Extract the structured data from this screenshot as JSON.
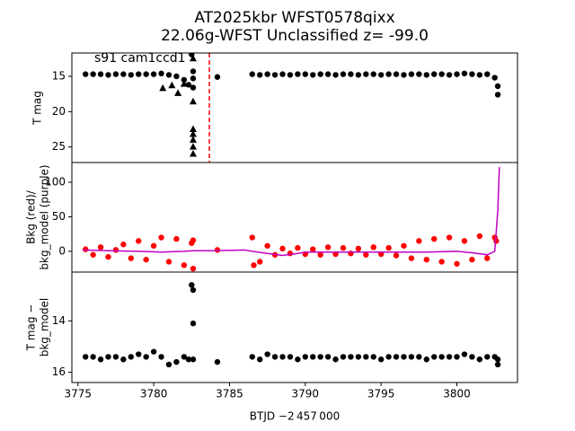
{
  "chart_data": [
    {
      "type": "scatter",
      "title": [
        "AT2025kbr  WFST0578qixx",
        "22.06g-WFST Unclassified z= -99.0"
      ],
      "annotation": "s91 cam1ccd1",
      "ylabel": [
        "T mag"
      ],
      "xlim": [
        3774.6,
        3804.0
      ],
      "ylim": [
        11.7,
        27.2
      ],
      "y_inverted": true,
      "yticks": [
        15,
        20,
        25
      ],
      "vline": {
        "x": 3783.67,
        "color": "red",
        "style": "dashed"
      },
      "series": [
        {
          "marker": "circle",
          "color": "black",
          "x": [
            3775.5,
            3776,
            3776.5,
            3777,
            3777.5,
            3778,
            3778.5,
            3779,
            3779.5,
            3780,
            3780.5,
            3781,
            3781.5,
            3782,
            3782.3,
            3782.5,
            3782.6,
            3782.6,
            3782.6,
            3784.2,
            3786.5,
            3787,
            3787.5,
            3788,
            3788.5,
            3789,
            3789.5,
            3790,
            3790.5,
            3791,
            3791.5,
            3792,
            3792.5,
            3793,
            3793.5,
            3794,
            3794.5,
            3795,
            3795.5,
            3796,
            3796.5,
            3797,
            3797.5,
            3798,
            3798.5,
            3799,
            3799.5,
            3800,
            3800.5,
            3801,
            3801.5,
            3802,
            3802.5,
            3802.7,
            3802.7
          ],
          "values": [
            14.7,
            14.7,
            14.7,
            14.8,
            14.7,
            14.7,
            14.8,
            14.7,
            14.7,
            14.7,
            14.6,
            14.8,
            15.0,
            15.5,
            16.2,
            11.9,
            14.3,
            15.3,
            16.6,
            15.1,
            14.7,
            14.8,
            14.7,
            14.8,
            14.7,
            14.8,
            14.7,
            14.7,
            14.8,
            14.7,
            14.7,
            14.8,
            14.7,
            14.7,
            14.8,
            14.7,
            14.7,
            14.8,
            14.7,
            14.7,
            14.8,
            14.7,
            14.7,
            14.8,
            14.7,
            14.7,
            14.8,
            14.7,
            14.6,
            14.7,
            14.8,
            14.7,
            15.2,
            16.4,
            17.6
          ]
        },
        {
          "marker": "triangle",
          "color": "black",
          "x": [
            3780.6,
            3781.2,
            3781.6,
            3782.0,
            3782.6,
            3782.6,
            3782.6,
            3782.6,
            3782.6,
            3782.6,
            3782.6
          ],
          "values": [
            16.7,
            16.3,
            17.4,
            16.1,
            12.5,
            18.6,
            22.5,
            23.2,
            24.0,
            25.0,
            26.0
          ]
        }
      ]
    },
    {
      "type": "scatter",
      "ylabel": [
        "Bkg (red)/",
        "bkg_model (purple)"
      ],
      "xlim": [
        3774.6,
        3804.0
      ],
      "ylim": [
        -30,
        128.6
      ],
      "y_inverted": false,
      "yticks": [
        0,
        50,
        100
      ],
      "series": [
        {
          "marker": "circle",
          "color": "red",
          "x": [
            3775.5,
            3776,
            3776.5,
            3777,
            3777.5,
            3778,
            3778.5,
            3779,
            3779.5,
            3780,
            3780.5,
            3781,
            3781.5,
            3782,
            3782.5,
            3784.2,
            3786.5,
            3787,
            3787.5,
            3788,
            3788.5,
            3789,
            3789.5,
            3790,
            3790.5,
            3791,
            3791.5,
            3792,
            3792.5,
            3793,
            3793.5,
            3794,
            3794.5,
            3795,
            3795.5,
            3796,
            3796.5,
            3797,
            3797.5,
            3798,
            3798.5,
            3799,
            3799.5,
            3800,
            3800.5,
            3801,
            3801.5,
            3802,
            3802.5,
            3782.6,
            3782.6,
            3786.6,
            3802.6
          ],
          "values": [
            3,
            -5,
            6,
            -8,
            2,
            10,
            -10,
            15,
            -12,
            8,
            20,
            -15,
            18,
            -20,
            12,
            2,
            20,
            -15,
            8,
            -5,
            4,
            -3,
            5,
            -4,
            3,
            -5,
            6,
            -4,
            5,
            -3,
            4,
            -5,
            6,
            -4,
            5,
            -6,
            8,
            -10,
            15,
            -12,
            18,
            -15,
            20,
            -18,
            15,
            -12,
            22,
            -10,
            20,
            -25,
            16,
            -20,
            15
          ]
        },
        {
          "marker": "line",
          "color": "#bf00bf",
          "x": [
            3775.3,
            3777,
            3779,
            3780.5,
            3782,
            3782.6,
            3784,
            3786,
            3786.5,
            3787.5,
            3788.5,
            3789.5,
            3790,
            3792,
            3795,
            3798,
            3800,
            3801,
            3802,
            3802.5,
            3802.7,
            3802.8
          ],
          "values": [
            2,
            1,
            0,
            -1,
            0,
            1,
            1,
            2,
            0,
            -3,
            -6,
            -3,
            -1,
            -1,
            -1,
            -1,
            0,
            -2,
            -5,
            0,
            60,
            122
          ]
        }
      ]
    },
    {
      "type": "scatter",
      "ylabel": [
        "T mag −",
        "bkg_model"
      ],
      "xlabel": "BTJD −2 457 000",
      "xlim": [
        3774.6,
        3804.0
      ],
      "ylim": [
        12.1,
        16.4
      ],
      "y_inverted": true,
      "yticks": [
        14,
        16
      ],
      "xticks": [
        3775,
        3780,
        3785,
        3790,
        3795,
        3800
      ],
      "series": [
        {
          "marker": "circle",
          "color": "black",
          "x": [
            3775.5,
            3776,
            3776.5,
            3777,
            3777.5,
            3778,
            3778.5,
            3779,
            3779.5,
            3780,
            3780.5,
            3781,
            3781.5,
            3782,
            3782.3,
            3782.5,
            3782.6,
            3782.6,
            3782.6,
            3784.2,
            3786.5,
            3787,
            3787.5,
            3788,
            3788.5,
            3789,
            3789.5,
            3790,
            3790.5,
            3791,
            3791.5,
            3792,
            3792.5,
            3793,
            3793.5,
            3794,
            3794.5,
            3795,
            3795.5,
            3796,
            3796.5,
            3797,
            3797.5,
            3798,
            3798.5,
            3799,
            3799.5,
            3800,
            3800.5,
            3801,
            3801.5,
            3802,
            3802.5,
            3802.7,
            3802.7
          ],
          "values": [
            15.4,
            15.4,
            15.5,
            15.4,
            15.4,
            15.5,
            15.4,
            15.3,
            15.4,
            15.2,
            15.4,
            15.7,
            15.6,
            15.4,
            15.5,
            12.6,
            12.8,
            14.1,
            15.5,
            15.6,
            15.4,
            15.5,
            15.3,
            15.4,
            15.4,
            15.4,
            15.5,
            15.4,
            15.4,
            15.4,
            15.4,
            15.5,
            15.4,
            15.4,
            15.4,
            15.4,
            15.4,
            15.5,
            15.4,
            15.4,
            15.4,
            15.4,
            15.4,
            15.5,
            15.4,
            15.4,
            15.4,
            15.4,
            15.3,
            15.4,
            15.5,
            15.4,
            15.4,
            15.5,
            15.7
          ]
        }
      ]
    }
  ]
}
